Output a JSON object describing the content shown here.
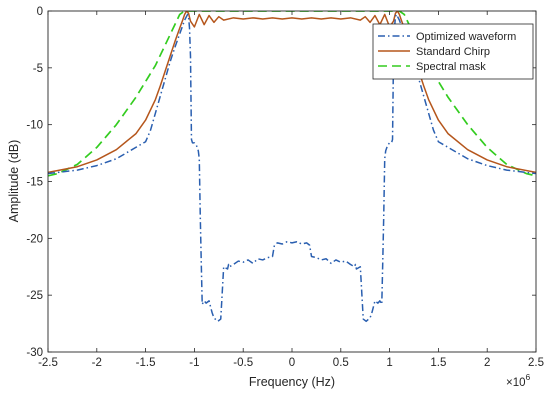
{
  "chart_data": {
    "type": "line",
    "title": "",
    "xlabel": "Frequency (Hz)",
    "ylabel": "Amplitude (dB)",
    "x_exponent_label": "×10",
    "x_exponent_power": "6",
    "xlim": [
      -2.5,
      2.5
    ],
    "ylim": [
      -30,
      0
    ],
    "x_ticks": [
      -2.5,
      -2,
      -1.5,
      -1,
      -0.5,
      0,
      0.5,
      1,
      1.5,
      2,
      2.5
    ],
    "x_tick_labels": [
      "-2.5",
      "-2",
      "-1.5",
      "-1",
      "-0.5",
      "0",
      "0.5",
      "1",
      "1.5",
      "2",
      "2.5"
    ],
    "y_ticks": [
      0,
      -5,
      -10,
      -15,
      -20,
      -25,
      -30
    ],
    "y_tick_labels": [
      "0",
      "-5",
      "-10",
      "-15",
      "-20",
      "-25",
      "-30"
    ],
    "grid": false,
    "legend_position": "top-right",
    "series": [
      {
        "name": "Optimized waveform",
        "color": "#2a5fb0",
        "dash": "dashdot",
        "x": [
          -2.5,
          -2.2,
          -2.0,
          -1.8,
          -1.6,
          -1.5,
          -1.45,
          -1.4,
          -1.35,
          -1.3,
          -1.25,
          -1.2,
          -1.15,
          -1.1,
          -1.07,
          -1.06,
          -1.05,
          -1.04,
          -1.03,
          -1.02,
          -1.0,
          -0.98,
          -0.96,
          -0.95,
          -0.94,
          -0.93,
          -0.92,
          -0.9,
          -0.88,
          -0.85,
          -0.82,
          -0.8,
          -0.76,
          -0.73,
          -0.7,
          -0.66,
          -0.65,
          -0.64,
          -0.6,
          -0.55,
          -0.5,
          -0.45,
          -0.4,
          -0.35,
          -0.3,
          -0.25,
          -0.2,
          -0.18,
          -0.15,
          -0.1,
          -0.05,
          0.0,
          0.05,
          0.1,
          0.15,
          0.18,
          0.2,
          0.25,
          0.3,
          0.35,
          0.4,
          0.45,
          0.5,
          0.55,
          0.6,
          0.64,
          0.65,
          0.66,
          0.7,
          0.73,
          0.76,
          0.8,
          0.82,
          0.85,
          0.88,
          0.9,
          0.92,
          0.93,
          0.94,
          0.95,
          0.96,
          0.98,
          1.0,
          1.02,
          1.03,
          1.04,
          1.05,
          1.06,
          1.07,
          1.1,
          1.15,
          1.2,
          1.25,
          1.3,
          1.35,
          1.4,
          1.45,
          1.5,
          1.6,
          1.8,
          2.0,
          2.2,
          2.5
        ],
        "y": [
          -14.3,
          -14.0,
          -13.6,
          -13.0,
          -12.0,
          -11.5,
          -10.5,
          -9.0,
          -7.5,
          -6.0,
          -4.5,
          -3.2,
          -2.0,
          -0.8,
          -0.3,
          -0.5,
          -1.5,
          -4.0,
          -11.3,
          -11.6,
          -11.6,
          -11.8,
          -12.3,
          -13.0,
          -18.0,
          -22.0,
          -25.8,
          -25.5,
          -25.7,
          -25.5,
          -26.5,
          -27.0,
          -27.3,
          -27.1,
          -22.5,
          -22.7,
          -22.3,
          -22.5,
          -22.3,
          -22.0,
          -22.1,
          -21.9,
          -22.2,
          -21.8,
          -21.9,
          -21.7,
          -21.6,
          -20.6,
          -20.4,
          -20.5,
          -20.3,
          -20.4,
          -20.3,
          -20.5,
          -20.4,
          -20.6,
          -21.6,
          -21.7,
          -21.9,
          -21.8,
          -22.2,
          -21.9,
          -22.1,
          -22.0,
          -22.3,
          -22.5,
          -22.3,
          -22.7,
          -22.5,
          -27.1,
          -27.3,
          -27.0,
          -26.5,
          -25.5,
          -25.7,
          -25.5,
          -25.8,
          -22.0,
          -18.0,
          -13.0,
          -12.3,
          -11.8,
          -11.6,
          -11.6,
          -11.3,
          -4.0,
          -1.5,
          -0.5,
          -0.3,
          -0.8,
          -2.0,
          -3.2,
          -4.5,
          -6.0,
          -7.5,
          -9.0,
          -10.5,
          -11.5,
          -12.0,
          -13.0,
          -13.6,
          -14.0,
          -14.3
        ]
      },
      {
        "name": "Standard Chirp",
        "color": "#b5561c",
        "dash": "solid",
        "x": [
          -2.5,
          -2.2,
          -2.0,
          -1.8,
          -1.6,
          -1.5,
          -1.4,
          -1.35,
          -1.3,
          -1.25,
          -1.2,
          -1.15,
          -1.12,
          -1.1,
          -1.08,
          -1.06,
          -1.04,
          -1.0,
          -0.95,
          -0.9,
          -0.85,
          -0.8,
          -0.75,
          -0.7,
          -0.6,
          -0.5,
          -0.4,
          -0.3,
          -0.2,
          -0.1,
          0.0,
          0.1,
          0.2,
          0.3,
          0.4,
          0.5,
          0.6,
          0.7,
          0.75,
          0.8,
          0.85,
          0.9,
          0.95,
          1.0,
          1.04,
          1.06,
          1.08,
          1.1,
          1.12,
          1.15,
          1.2,
          1.25,
          1.3,
          1.35,
          1.4,
          1.5,
          1.6,
          1.8,
          2.0,
          2.2,
          2.5
        ],
        "y": [
          -14.2,
          -13.7,
          -13.1,
          -12.2,
          -10.8,
          -9.6,
          -7.8,
          -6.6,
          -5.3,
          -4.0,
          -2.7,
          -1.5,
          -0.8,
          -0.3,
          0.0,
          -0.2,
          -0.9,
          -1.4,
          -0.3,
          -1.2,
          -0.4,
          -1.0,
          -0.5,
          -0.8,
          -0.6,
          -0.7,
          -0.6,
          -0.7,
          -0.6,
          -0.7,
          -0.6,
          -0.7,
          -0.6,
          -0.7,
          -0.6,
          -0.7,
          -0.6,
          -0.8,
          -0.5,
          -1.0,
          -0.4,
          -1.2,
          -0.3,
          -1.4,
          -0.9,
          -0.2,
          0.0,
          -0.3,
          -0.8,
          -1.5,
          -2.7,
          -4.0,
          -5.3,
          -6.6,
          -7.8,
          -9.6,
          -10.8,
          -12.2,
          -13.1,
          -13.7,
          -14.2
        ]
      },
      {
        "name": "Spectral mask",
        "color": "#33cc1f",
        "dash": "dash",
        "x": [
          -2.5,
          -2.4,
          -2.2,
          -2.0,
          -1.8,
          -1.6,
          -1.5,
          -1.4,
          -1.3,
          -1.2,
          -1.15,
          -1.1,
          -1.0,
          -0.5,
          0.0,
          0.5,
          1.0,
          1.1,
          1.15,
          1.2,
          1.3,
          1.4,
          1.5,
          1.6,
          1.8,
          2.0,
          2.2,
          2.4,
          2.5
        ],
        "y": [
          -14.5,
          -14.3,
          -13.5,
          -12.0,
          -10.0,
          -7.6,
          -6.2,
          -4.8,
          -3.0,
          -1.2,
          -0.3,
          0.0,
          0.0,
          0.0,
          0.0,
          0.0,
          0.0,
          0.0,
          -0.3,
          -1.2,
          -3.0,
          -4.8,
          -6.2,
          -7.6,
          -10.0,
          -12.0,
          -13.5,
          -14.3,
          -14.5
        ]
      }
    ]
  }
}
